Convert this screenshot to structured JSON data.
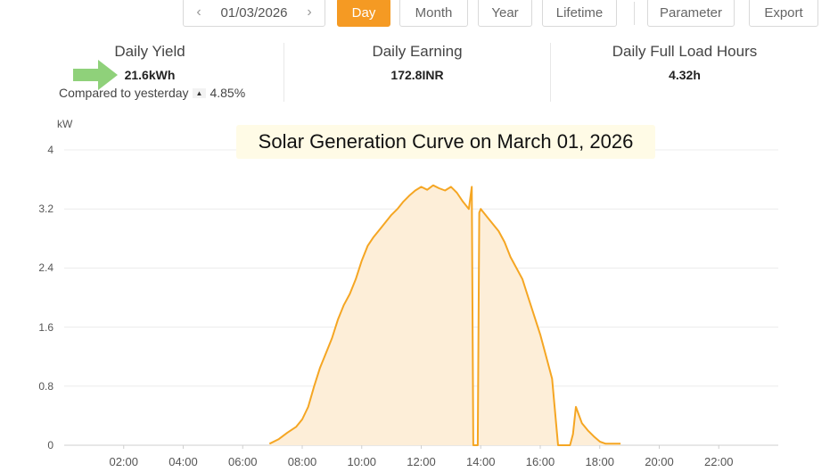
{
  "toolbar": {
    "date": "01/03/2026",
    "tabs": [
      "Day",
      "Month",
      "Year",
      "Lifetime"
    ],
    "active_tab": "Day",
    "parameter_label": "Parameter",
    "export_label": "Export"
  },
  "stats": {
    "daily_yield": {
      "label": "Daily Yield",
      "value": "21.6kWh"
    },
    "compare_label": "Compared to yesterday",
    "compare_value": "4.85%",
    "daily_earning": {
      "label": "Daily Earning",
      "value": "172.8INR"
    },
    "full_load_hours": {
      "label": "Daily Full Load Hours",
      "value": "4.32h"
    }
  },
  "colors": {
    "accent": "#f59a23",
    "line": "#f5a623",
    "fill": "#fdeed8",
    "arrow": "#8fd17a",
    "title_bg": "#fffbe6"
  },
  "chart_data": {
    "type": "area",
    "title": "Solar Generation Curve on March 01, 2026",
    "ylabel": "kW",
    "xlabel": "",
    "ylim": [
      0,
      4
    ],
    "xlim": [
      0,
      24
    ],
    "yticks": [
      "0",
      "0.8",
      "1.6",
      "2.4",
      "3.2",
      "4"
    ],
    "xticks": [
      "02:00",
      "04:00",
      "06:00",
      "08:00",
      "10:00",
      "12:00",
      "14:00",
      "16:00",
      "18:00",
      "20:00",
      "22:00"
    ],
    "grid": true,
    "series": [
      {
        "x": [
          6.9,
          7.2,
          7.5,
          7.8,
          8.0,
          8.2,
          8.4,
          8.6,
          8.8,
          9.0,
          9.2,
          9.4,
          9.6,
          9.8,
          10.0,
          10.2,
          10.4,
          10.6,
          10.8,
          11.0,
          11.2,
          11.4,
          11.6,
          11.8,
          12.0,
          12.2,
          12.4,
          12.6,
          12.8,
          13.0,
          13.2,
          13.4,
          13.6,
          13.7,
          13.75,
          13.9,
          13.95,
          14.0,
          14.2,
          14.4,
          14.6,
          14.8,
          15.0,
          15.2,
          15.4,
          15.6,
          15.8,
          16.0,
          16.2,
          16.4,
          16.6,
          16.65,
          17.0,
          17.1,
          17.2,
          17.4,
          17.6,
          17.8,
          18.0,
          18.2,
          18.5,
          18.7
        ],
        "y": [
          0.02,
          0.08,
          0.17,
          0.25,
          0.35,
          0.52,
          0.8,
          1.05,
          1.25,
          1.45,
          1.7,
          1.9,
          2.05,
          2.25,
          2.5,
          2.7,
          2.82,
          2.92,
          3.02,
          3.12,
          3.2,
          3.3,
          3.38,
          3.45,
          3.5,
          3.46,
          3.52,
          3.48,
          3.45,
          3.5,
          3.42,
          3.3,
          3.2,
          3.5,
          0.0,
          0.0,
          3.15,
          3.2,
          3.1,
          3.0,
          2.9,
          2.75,
          2.55,
          2.4,
          2.25,
          2.0,
          1.75,
          1.5,
          1.2,
          0.9,
          0.0,
          0.0,
          0.0,
          0.15,
          0.52,
          0.3,
          0.2,
          0.12,
          0.05,
          0.02,
          0.02,
          0.02
        ]
      }
    ]
  }
}
